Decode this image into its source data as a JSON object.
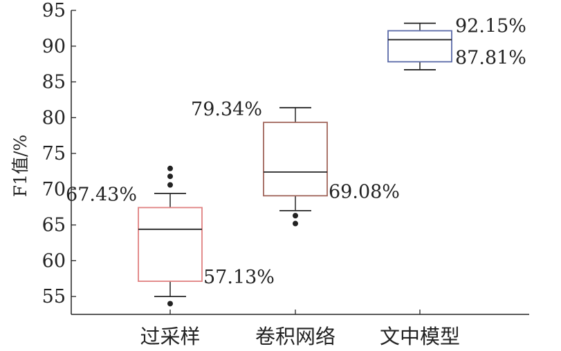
{
  "chart_data": {
    "type": "box",
    "title": "",
    "xlabel": "",
    "ylabel": "F1值/%",
    "ylim": [
      52.5,
      95
    ],
    "yticks": [
      "55",
      "60",
      "65",
      "70",
      "75",
      "80",
      "85",
      "90",
      "95"
    ],
    "categories": [
      "过采样",
      "卷积网络",
      "文中模型"
    ],
    "boxes": [
      {
        "category": "过采样",
        "whisker_low": 55.0,
        "q1": 57.13,
        "median": 64.4,
        "q3": 67.43,
        "whisker_high": 69.4,
        "outliers": [
          70.6,
          71.8,
          72.9,
          54.0
        ],
        "color": "#e08080",
        "q3_label": "67.43%",
        "q1_label": "57.13%"
      },
      {
        "category": "卷积网络",
        "whisker_low": 67.0,
        "q1": 69.08,
        "median": 72.4,
        "q3": 79.34,
        "whisker_high": 81.4,
        "outliers": [
          66.3,
          65.2
        ],
        "color": "#a0645a",
        "q3_label": "79.34%",
        "q1_label": "69.08%"
      },
      {
        "category": "文中模型",
        "whisker_low": 86.7,
        "q1": 87.81,
        "median": 90.9,
        "q3": 92.15,
        "whisker_high": 93.2,
        "outliers": [],
        "color": "#5a6aa8",
        "q3_label": "92.15%",
        "q1_label": "87.81%"
      }
    ],
    "grid": false,
    "legend": "none"
  }
}
